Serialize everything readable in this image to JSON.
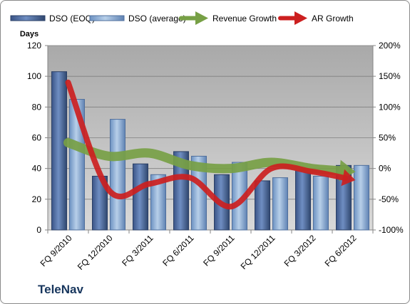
{
  "brand": "TeleNav",
  "chart_data": {
    "type": "bar",
    "categories": [
      "FQ 9/2010",
      "FQ 12/2010",
      "FQ 3/2011",
      "FQ 6/2011",
      "FQ 9/2011",
      "FQ 12/2011",
      "FQ 3/2012",
      "FQ 6/2012"
    ],
    "series": [
      {
        "name": "DSO (EOQ)",
        "kind": "bar",
        "axis": "left",
        "color": "#4a6aa0",
        "values": [
          103,
          35,
          43,
          51,
          36,
          32,
          39,
          42
        ]
      },
      {
        "name": "DSO (average)",
        "kind": "bar",
        "axis": "left",
        "color": "#8eb2da",
        "values": [
          85,
          72,
          36,
          48,
          44,
          34,
          35,
          42
        ]
      },
      {
        "name": "Revenue Growth",
        "kind": "line",
        "axis": "right",
        "color": "#77a045",
        "unit": "%",
        "values": [
          42,
          20,
          25,
          5,
          0,
          10,
          0,
          -5
        ]
      },
      {
        "name": "AR Growth",
        "kind": "line",
        "axis": "right",
        "color": "#cc1f1f",
        "unit": "%",
        "values": [
          140,
          -35,
          -25,
          -15,
          -62,
          0,
          -5,
          -18
        ]
      }
    ],
    "left_axis": {
      "title": "Days",
      "ylim": [
        0,
        120
      ],
      "ticks": [
        "0",
        "20",
        "40",
        "60",
        "80",
        "100",
        "120"
      ]
    },
    "right_axis": {
      "ylim": [
        -100,
        200
      ],
      "ticks": [
        "-100%",
        "-50%",
        "0%",
        "50%",
        "100%",
        "150%",
        "200%"
      ]
    },
    "legend_position": "top",
    "grid": true
  }
}
